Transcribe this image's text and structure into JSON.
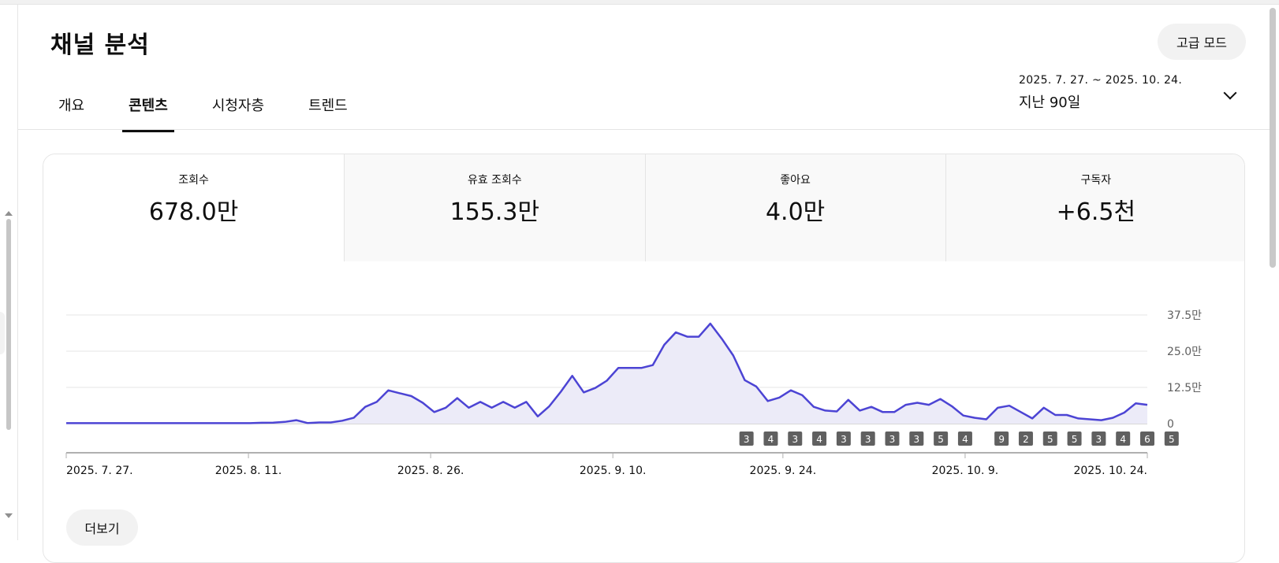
{
  "header": {
    "title": "채널 분석",
    "advanced_mode_label": "고급 모드"
  },
  "tabs": [
    {
      "label": "개요",
      "active": false
    },
    {
      "label": "콘텐츠",
      "active": true
    },
    {
      "label": "시청자층",
      "active": false
    },
    {
      "label": "트렌드",
      "active": false
    }
  ],
  "date_range": {
    "dates": "2025. 7. 27. ~ 2025. 10. 24.",
    "label": "지난 90일"
  },
  "metrics": [
    {
      "label": "조회수",
      "value": "678.0만"
    },
    {
      "label": "유효 조회수",
      "value": "155.3만"
    },
    {
      "label": "좋아요",
      "value": "4.0만"
    },
    {
      "label": "구독자",
      "value": "+6.5천"
    }
  ],
  "colors": {
    "line": "#4c44d4",
    "fill": "#ecebf8",
    "marker": "#606060"
  },
  "chart_data": {
    "type": "area",
    "x_start": "2025-07-27",
    "x_end": "2025-10-24",
    "x_tick_labels": [
      "2025. 7. 27.",
      "2025. 8. 11.",
      "2025. 8. 26.",
      "2025. 9. 10.",
      "2025. 9. 24.",
      "2025. 10. 9.",
      "2025. 10. 24."
    ],
    "x_tick_dates": [
      "2025-07-27",
      "2025-08-11",
      "2025-08-26",
      "2025-09-10",
      "2025-09-24",
      "2025-10-09",
      "2025-10-24"
    ],
    "y_ticks": [
      0,
      125000,
      250000,
      375000
    ],
    "y_tick_labels": [
      "0",
      "12.5만",
      "25.0만",
      "37.5만"
    ],
    "ylim": [
      0,
      375000
    ],
    "grid": true,
    "series": [
      {
        "values": [
          1500,
          1500,
          1500,
          1500,
          1500,
          1500,
          1500,
          1500,
          1500,
          1500,
          1500,
          1500,
          1500,
          1500,
          1500,
          1500,
          1500,
          3000,
          3500,
          6000,
          12000,
          2000,
          4000,
          4000,
          10000,
          20000,
          58000,
          75000,
          115000,
          105000,
          95000,
          72000,
          40000,
          55000,
          88000,
          55000,
          75000,
          55000,
          75000,
          55000,
          75000,
          25000,
          60000,
          110000,
          165000,
          108000,
          123000,
          148000,
          192000,
          192000,
          192000,
          202000,
          272000,
          315000,
          300000,
          300000,
          345000,
          293000,
          235000,
          150000,
          128000,
          78000,
          90000,
          115000,
          98000,
          58000,
          45000,
          42000,
          82000,
          45000,
          58000,
          40000,
          40000,
          65000,
          72000,
          65000,
          85000,
          60000,
          28000,
          20000,
          15000,
          55000,
          62000,
          40000,
          18000,
          55000,
          30000,
          30000,
          18000,
          15000,
          12000,
          20000,
          38000,
          70000,
          65000
        ]
      }
    ],
    "annotations": [
      "3",
      "4",
      "3",
      "4",
      "3",
      "3",
      "3",
      "3",
      "5",
      "4",
      "9",
      "2",
      "5",
      "5",
      "3",
      "4",
      "6",
      "5"
    ],
    "annotation_dates": [
      "2025-09-21",
      "2025-09-23",
      "2025-09-25",
      "2025-09-27",
      "2025-09-29",
      "2025-10-01",
      "2025-10-03",
      "2025-10-05",
      "2025-10-07",
      "2025-10-09",
      "2025-10-12",
      "2025-10-14",
      "2025-10-16",
      "2025-10-18",
      "2025-10-20",
      "2025-10-22",
      "2025-10-24",
      "2025-10-26"
    ]
  },
  "footer": {
    "more_label": "더보기"
  }
}
